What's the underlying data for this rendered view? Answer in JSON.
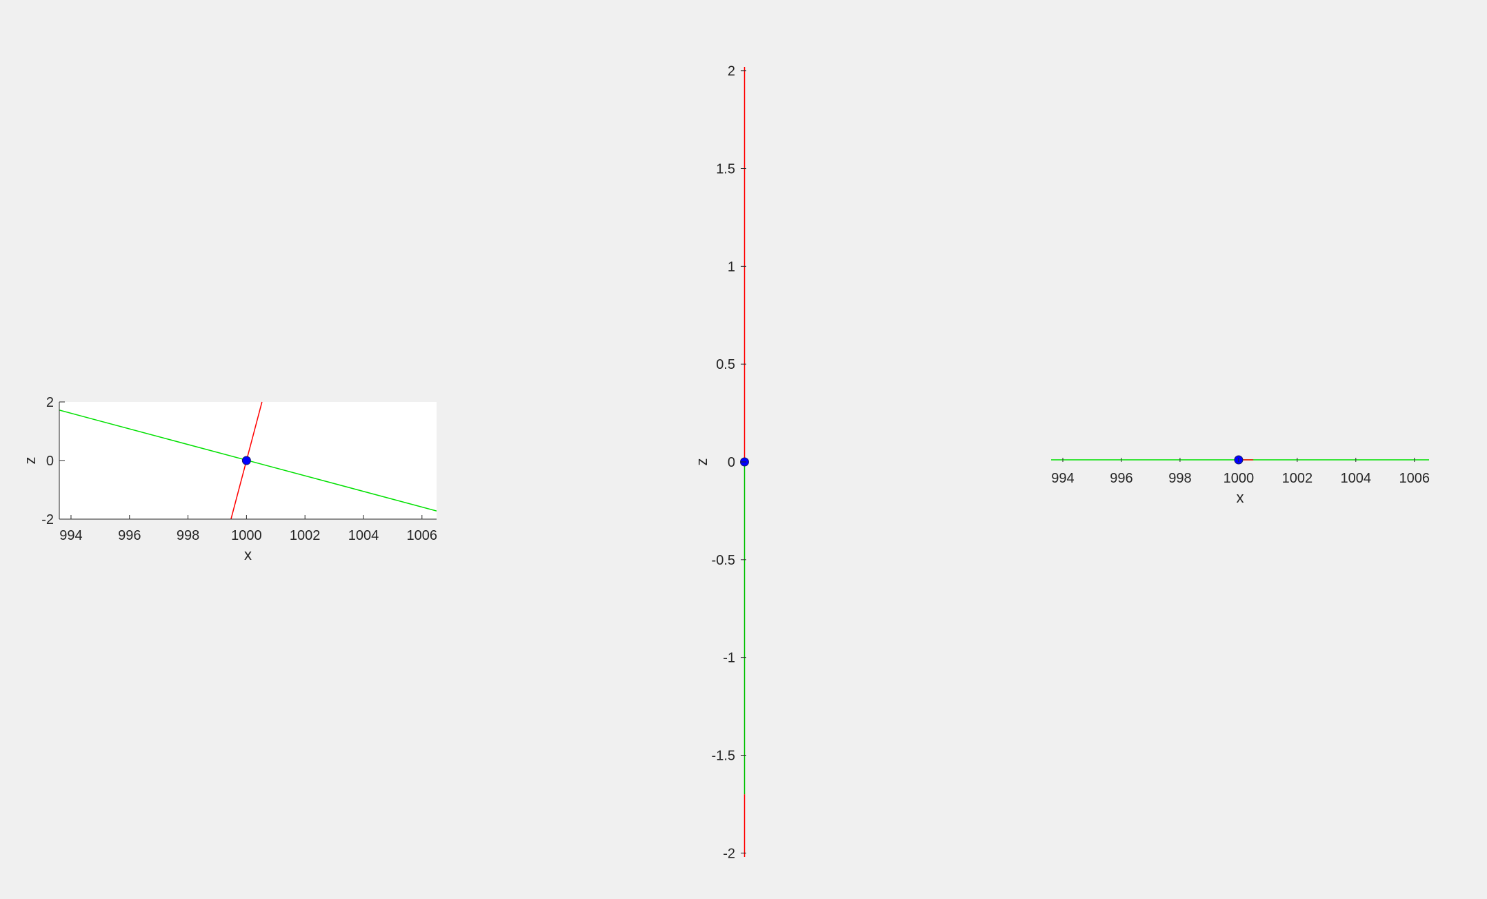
{
  "figure": {
    "background": "#f0f0f0"
  },
  "chart_data": [
    {
      "type": "line",
      "name": "left-panel",
      "xlabel": "x",
      "ylabel": "z",
      "xlim": [
        993.6,
        1006.5
      ],
      "ylim": [
        -2,
        2
      ],
      "xticks": [
        994,
        996,
        998,
        1000,
        1002,
        1004,
        1006
      ],
      "xtick_labels": [
        "994",
        "996",
        "998",
        "1000",
        "1002",
        "1004",
        "1006"
      ],
      "yticks": [
        -2,
        0,
        2
      ],
      "ytick_labels": [
        "-2",
        "0",
        "2"
      ],
      "axes_background": "#ffffff",
      "grid": false,
      "series": [
        {
          "color": "#00e000",
          "x": [
            993.6,
            1006.5
          ],
          "y": [
            1.72,
            -1.72
          ]
        },
        {
          "color": "#ff0000",
          "x": [
            999.47,
            1000.53
          ],
          "y": [
            -2,
            2
          ]
        }
      ],
      "points": [
        {
          "x": 1000,
          "y": 0,
          "color": "#0000ff"
        }
      ]
    },
    {
      "type": "line",
      "name": "center-panel",
      "xlabel": "",
      "ylabel": "z",
      "xlim": [
        999.99,
        1000.01
      ],
      "ylim": [
        -2.02,
        2.02
      ],
      "yticks": [
        -2,
        -1.5,
        -1,
        -0.5,
        0,
        0.5,
        1,
        1.5,
        2
      ],
      "ytick_labels": [
        "-2",
        "-1.5",
        "-1",
        "-0.5",
        "0",
        "0.5",
        "1",
        "1.5",
        "2"
      ],
      "grid": false,
      "series": [
        {
          "color": "#ff0000",
          "x": [
            1000,
            1000
          ],
          "y": [
            2.02,
            0
          ]
        },
        {
          "color": "#00c000",
          "x": [
            1000,
            1000
          ],
          "y": [
            0,
            -1.7
          ]
        },
        {
          "color": "#ff0000",
          "x": [
            1000,
            1000
          ],
          "y": [
            -1.7,
            -2.02
          ]
        }
      ],
      "points": [
        {
          "x": 1000,
          "y": 0,
          "color": "#0000ff"
        }
      ]
    },
    {
      "type": "line",
      "name": "right-panel",
      "xlabel": "x",
      "ylabel": "",
      "xlim": [
        993.6,
        1006.5
      ],
      "ylim": [
        -0.01,
        0.01
      ],
      "xticks": [
        994,
        996,
        998,
        1000,
        1002,
        1004,
        1006
      ],
      "xtick_labels": [
        "994",
        "996",
        "998",
        "1000",
        "1002",
        "1004",
        "1006"
      ],
      "grid": false,
      "series": [
        {
          "color": "#00e000",
          "x": [
            993.6,
            1006.5
          ],
          "y": [
            0,
            0
          ]
        },
        {
          "color": "#ff0000",
          "x": [
            1000,
            1000.5
          ],
          "y": [
            0,
            0
          ]
        }
      ],
      "points": [
        {
          "x": 1000,
          "y": 0,
          "color": "#0000ff"
        }
      ]
    }
  ]
}
